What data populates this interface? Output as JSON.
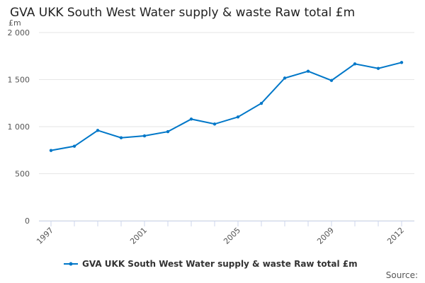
{
  "chart_data": {
    "type": "line",
    "title": "GVA UKK South West Water supply & waste Raw total £m",
    "ylabel": "£m",
    "xlabel": "",
    "x": [
      1997,
      1998,
      1999,
      2000,
      2001,
      2002,
      2003,
      2004,
      2005,
      2006,
      2007,
      2008,
      2009,
      2010,
      2011,
      2012
    ],
    "series": [
      {
        "name": "GVA UKK South West Water supply & waste Raw total £m",
        "color": "#0077c8",
        "values": [
          747,
          792,
          960,
          882,
          902,
          947,
          1080,
          1028,
          1103,
          1248,
          1516,
          1589,
          1491,
          1667,
          1619,
          1682
        ]
      }
    ],
    "ylim": [
      0,
      2000
    ],
    "yticks": [
      0,
      500,
      1000,
      1500,
      2000
    ],
    "ytick_labels": [
      "0",
      "500",
      "1 000",
      "1 500",
      "2 000"
    ],
    "xtick_labels": [
      "1997",
      "2001",
      "2005",
      "2009",
      "2012"
    ],
    "grid": true,
    "legend": "bottom"
  },
  "source": "Source:"
}
